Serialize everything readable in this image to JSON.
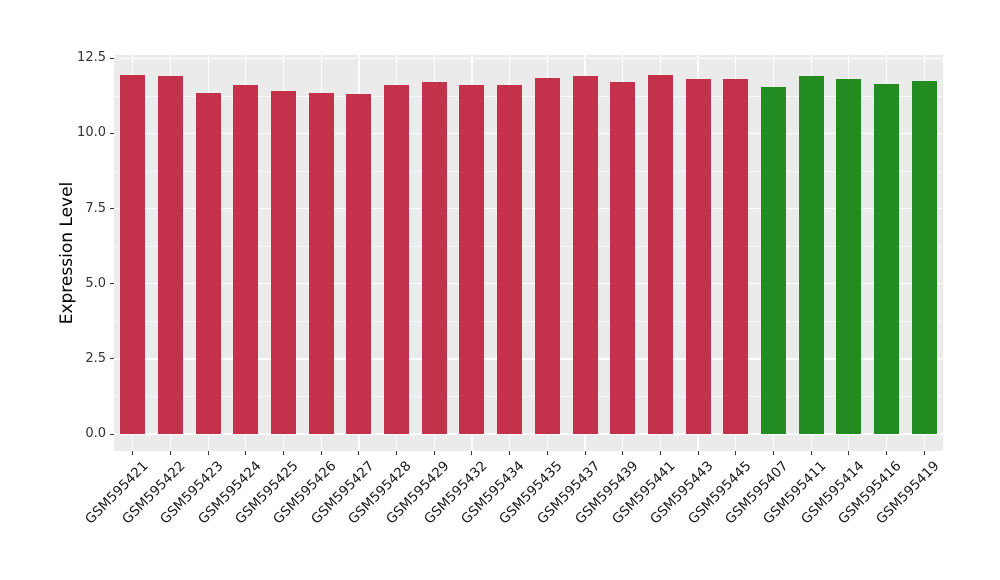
{
  "chart_data": {
    "type": "bar",
    "title": "",
    "xlabel": "",
    "ylabel": "Expression Level",
    "ylim": [
      0,
      12.5
    ],
    "ytick_values": [
      0,
      2.5,
      5,
      7.5,
      10,
      12.5
    ],
    "ytick_labels": [
      "0.0",
      "2.5",
      "5.0",
      "7.5",
      "10.0",
      "12.5"
    ],
    "grid": "major-and-minor",
    "legend_position": "none",
    "categories": [
      "GSM595421",
      "GSM595422",
      "GSM595423",
      "GSM595424",
      "GSM595425",
      "GSM595426",
      "GSM595427",
      "GSM595428",
      "GSM595429",
      "GSM595432",
      "GSM595434",
      "GSM595435",
      "GSM595437",
      "GSM595439",
      "GSM595441",
      "GSM595443",
      "GSM595445",
      "GSM595407",
      "GSM595411",
      "GSM595414",
      "GSM595416",
      "GSM595419"
    ],
    "values": [
      11.95,
      11.9,
      11.35,
      11.6,
      11.4,
      11.35,
      11.3,
      11.6,
      11.7,
      11.6,
      11.6,
      11.85,
      11.9,
      11.7,
      11.95,
      11.8,
      11.8,
      11.55,
      11.9,
      11.8,
      11.65,
      11.75
    ],
    "groups": [
      "group1",
      "group1",
      "group1",
      "group1",
      "group1",
      "group1",
      "group1",
      "group1",
      "group1",
      "group1",
      "group1",
      "group1",
      "group1",
      "group1",
      "group1",
      "group1",
      "group1",
      "group2",
      "group2",
      "group2",
      "group2",
      "group2"
    ],
    "colors": {
      "group1": "#C3314B",
      "group2": "#228B22",
      "panel_background": "#EBEBEB",
      "gridline": "#FFFFFF",
      "tick": "#333333",
      "figure_background": "#FFFFFF"
    }
  }
}
